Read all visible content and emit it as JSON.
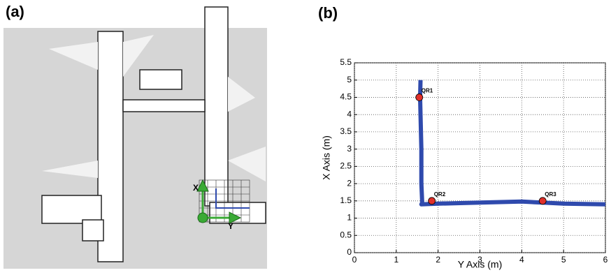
{
  "panels": {
    "a": "(a)",
    "b": "(b)"
  },
  "map": {
    "x_label": "X",
    "y_label": "Y"
  },
  "chart_data": {
    "type": "line",
    "x_label": "Y Axis (m)",
    "y_label": "X Axis (m)",
    "xlim": [
      0,
      6
    ],
    "xticks": [
      0,
      1,
      2,
      3,
      4,
      5,
      6
    ],
    "ylim": [
      0,
      5.5
    ],
    "yticks": [
      0,
      0.5,
      1,
      1.5,
      2,
      2.5,
      3,
      3.5,
      4,
      4.5,
      5,
      5.5
    ],
    "grid": true,
    "series": [
      {
        "color": "#2f4aad",
        "x": [
          1.58,
          1.57,
          1.6,
          1.6,
          1.62,
          1.6,
          2,
          3,
          4,
          4.5,
          5,
          6
        ],
        "values": [
          5.0,
          4.5,
          3.0,
          2.0,
          1.45,
          1.4,
          1.42,
          1.45,
          1.48,
          1.45,
          1.42,
          1.4
        ]
      }
    ],
    "markers": [
      {
        "label": "QR1",
        "x": 1.55,
        "y": 4.5,
        "color": "#e0302a"
      },
      {
        "label": "QR2",
        "x": 1.85,
        "y": 1.5,
        "color": "#e0302a"
      },
      {
        "label": "QR3",
        "x": 4.5,
        "y": 1.5,
        "color": "#e0302a"
      }
    ]
  }
}
